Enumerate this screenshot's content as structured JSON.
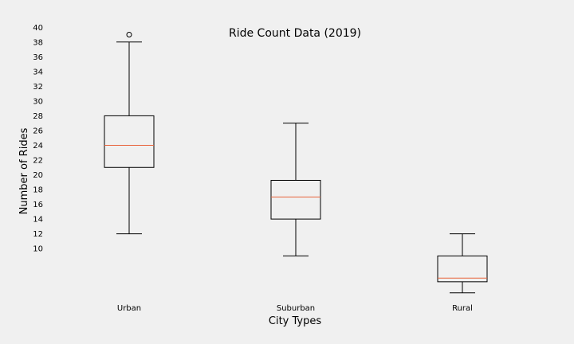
{
  "chart_data": {
    "type": "box",
    "title": "Ride Count Data (2019)",
    "xlabel": "City Types",
    "ylabel": "Number of Rides",
    "ylim": [
      3,
      41
    ],
    "yticks": [
      10,
      12,
      14,
      16,
      18,
      20,
      22,
      24,
      26,
      28,
      30,
      32,
      34,
      36,
      38,
      40
    ],
    "grid": false,
    "categories": [
      "Urban",
      "Suburban",
      "Rural"
    ],
    "boxes": [
      {
        "category": "Urban",
        "whisker_low": 12,
        "q1": 21,
        "median": 24,
        "q3": 28,
        "whisker_high": 38,
        "outliers": [
          39
        ]
      },
      {
        "category": "Suburban",
        "whisker_low": 9,
        "q1": 14,
        "median": 17,
        "q3": 19.25,
        "whisker_high": 27,
        "outliers": []
      },
      {
        "category": "Rural",
        "whisker_low": 4,
        "q1": 5.5,
        "median": 6,
        "q3": 9,
        "whisker_high": 12,
        "outliers": []
      }
    ],
    "colors": {
      "box": "#000000",
      "median": "#e8643c",
      "background": "#f0f0f0"
    }
  }
}
